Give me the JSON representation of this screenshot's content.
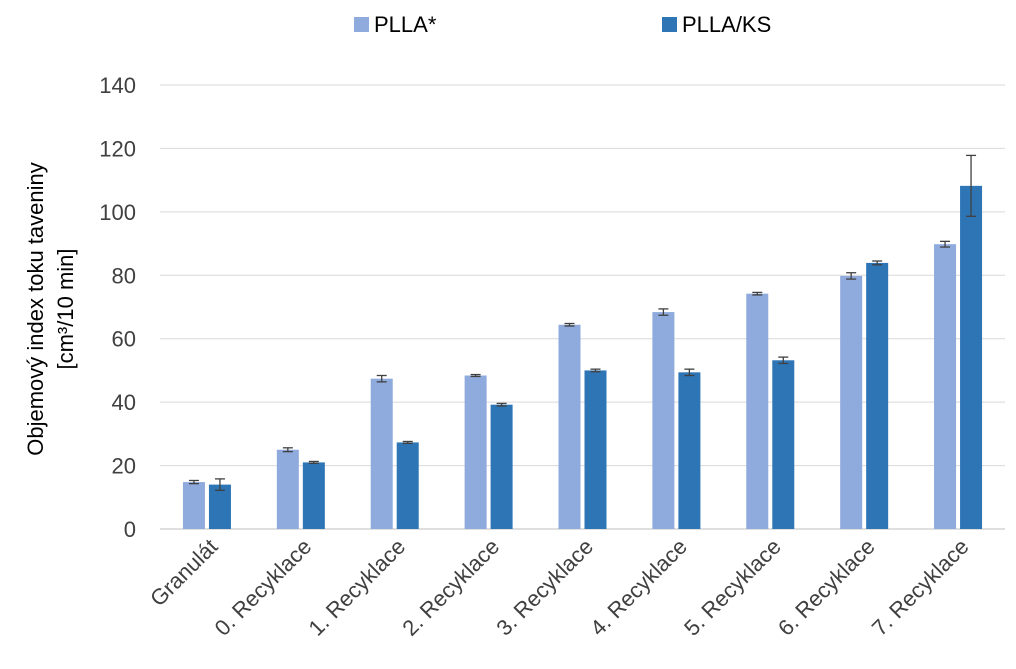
{
  "chart_data": {
    "type": "bar",
    "title": "",
    "xlabel": "",
    "ylabel_lines": [
      "Objemový index toku taveniny",
      "[cm³/10 min]"
    ],
    "ylim": [
      0,
      140
    ],
    "yticks": [
      0,
      20,
      40,
      60,
      80,
      100,
      120,
      140
    ],
    "grid": true,
    "legend_position": "top",
    "categories": [
      "Granulát",
      "0. Recyklace",
      "1. Recyklace",
      "2. Recyklace",
      "3. Recyklace",
      "4. Recyklace",
      "5. Recyklace",
      "6. Recyklace",
      "7. Recyklace"
    ],
    "series": [
      {
        "name": "PLLA*",
        "color": "#8faadc",
        "values": [
          14.8,
          25.0,
          47.4,
          48.4,
          64.4,
          68.4,
          74.2,
          79.8,
          89.8
        ],
        "errors": [
          0.5,
          0.6,
          1.0,
          0.3,
          0.4,
          1.0,
          0.4,
          1.0,
          0.9
        ]
      },
      {
        "name": "PLLA/KS",
        "color": "#2e75b6",
        "values": [
          14.0,
          21.0,
          27.3,
          39.2,
          50.0,
          49.4,
          53.2,
          83.9,
          108.2
        ],
        "errors": [
          1.8,
          0.3,
          0.3,
          0.4,
          0.4,
          1.0,
          1.0,
          0.6,
          9.6
        ]
      }
    ]
  }
}
